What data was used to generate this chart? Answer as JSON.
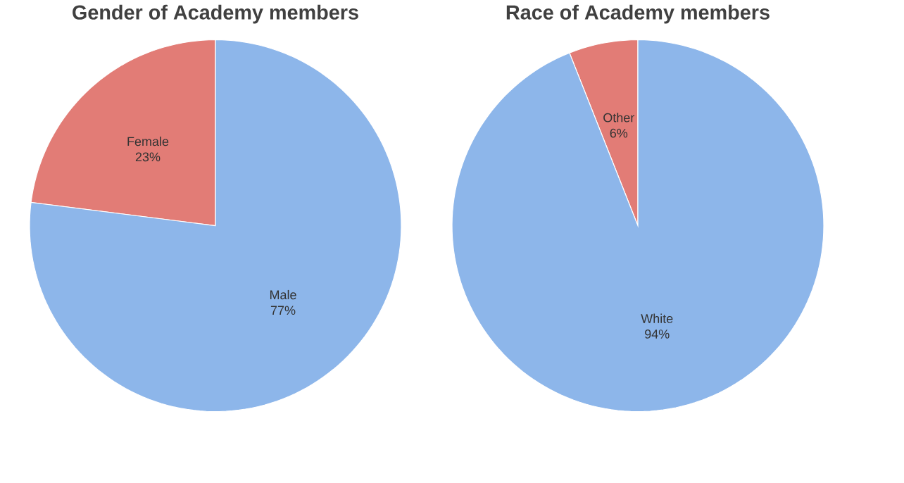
{
  "chart_data": [
    {
      "type": "pie",
      "title": "Gender of Academy members",
      "categories": [
        "Female",
        "Male"
      ],
      "values": [
        23,
        77
      ],
      "value_labels": [
        "23%",
        "77%"
      ],
      "colors": [
        "#e27c76",
        "#8db6ea"
      ]
    },
    {
      "type": "pie",
      "title": "Race of Academy members",
      "categories": [
        "Other",
        "White"
      ],
      "values": [
        6,
        94
      ],
      "value_labels": [
        "6%",
        "94%"
      ],
      "colors": [
        "#e27c76",
        "#8db6ea"
      ]
    }
  ]
}
